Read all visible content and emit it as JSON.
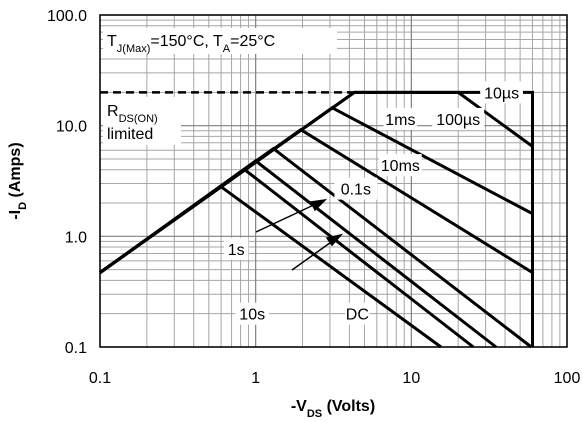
{
  "chart_data": {
    "type": "line",
    "title": "",
    "xlabel": "-V_DS (Volts)",
    "xlabel_parts": {
      "prefix": "-V",
      "sub": "DS",
      "suffix": " (Volts)"
    },
    "ylabel": "-I_D (Amps)",
    "ylabel_parts": {
      "prefix": "-I",
      "sub": "D",
      "suffix": " (Amps)"
    },
    "xscale": "log",
    "yscale": "log",
    "xlim": [
      0.1,
      100
    ],
    "ylim": [
      0.1,
      100
    ],
    "grid": true,
    "x_ticks": [
      0.1,
      1,
      10,
      100
    ],
    "x_tick_labels": [
      "0.1",
      "1",
      "10",
      "100"
    ],
    "y_ticks": [
      0.1,
      1,
      10,
      100
    ],
    "y_tick_labels": [
      "0.1",
      "1.0",
      "10.0",
      "100.0"
    ],
    "conditions": {
      "p1_prefix": "T",
      "p1_sub": "J(Max)",
      "p1_suffix": "=150°C, T",
      "p2_sub": "A",
      "p2_suffix": "=25°C"
    },
    "rds_label": {
      "prefix": "R",
      "sub": "DS(ON)",
      "line2": "limited"
    },
    "series": [
      {
        "name": "RDS(ON) limit",
        "style": "dashed",
        "x": [
          0.1,
          4.3
        ],
        "y": [
          20,
          20
        ]
      },
      {
        "name": "10µs",
        "x": [
          0.1,
          4.3,
          60,
          60
        ],
        "y": [
          0.47,
          20,
          20,
          0.1
        ]
      },
      {
        "name": "100µs",
        "x": [
          0.1,
          4.3,
          20,
          60,
          60
        ],
        "y": [
          0.47,
          20,
          20,
          6.5,
          0.1
        ]
      },
      {
        "name": "1ms",
        "x": [
          0.1,
          3.1,
          60,
          60
        ],
        "y": [
          0.47,
          14.5,
          1.6,
          0.1
        ]
      },
      {
        "name": "10ms",
        "x": [
          0.1,
          1.95,
          60,
          60
        ],
        "y": [
          0.47,
          9.2,
          0.47,
          0.1
        ]
      },
      {
        "name": "0.1s",
        "x": [
          0.1,
          1.3,
          59
        ],
        "y": [
          0.47,
          6.2,
          0.1
        ]
      },
      {
        "name": "1s",
        "x": [
          0.1,
          1.0,
          35
        ],
        "y": [
          0.47,
          4.8,
          0.1
        ]
      },
      {
        "name": "10s",
        "x": [
          0.1,
          0.85,
          25
        ],
        "y": [
          0.47,
          4.0,
          0.1
        ]
      },
      {
        "name": "DC",
        "x": [
          0.1,
          0.6,
          15.5
        ],
        "y": [
          0.47,
          2.8,
          0.1
        ]
      }
    ],
    "annotations": [
      {
        "text": "10µs",
        "x": 38,
        "y": 20
      },
      {
        "text": "100µs",
        "x": 20,
        "y": 11.5
      },
      {
        "text": "1ms",
        "x": 8.5,
        "y": 11.5
      },
      {
        "text": "10ms",
        "x": 8.5,
        "y": 4.4
      },
      {
        "text": "0.1s",
        "x": 4.4,
        "y": 2.7
      },
      {
        "text": "1s",
        "x": 0.75,
        "y": 0.77
      },
      {
        "text": "10s",
        "x": 0.95,
        "y": 0.2
      },
      {
        "text": "DC",
        "x": 4.5,
        "y": 0.2
      }
    ]
  }
}
